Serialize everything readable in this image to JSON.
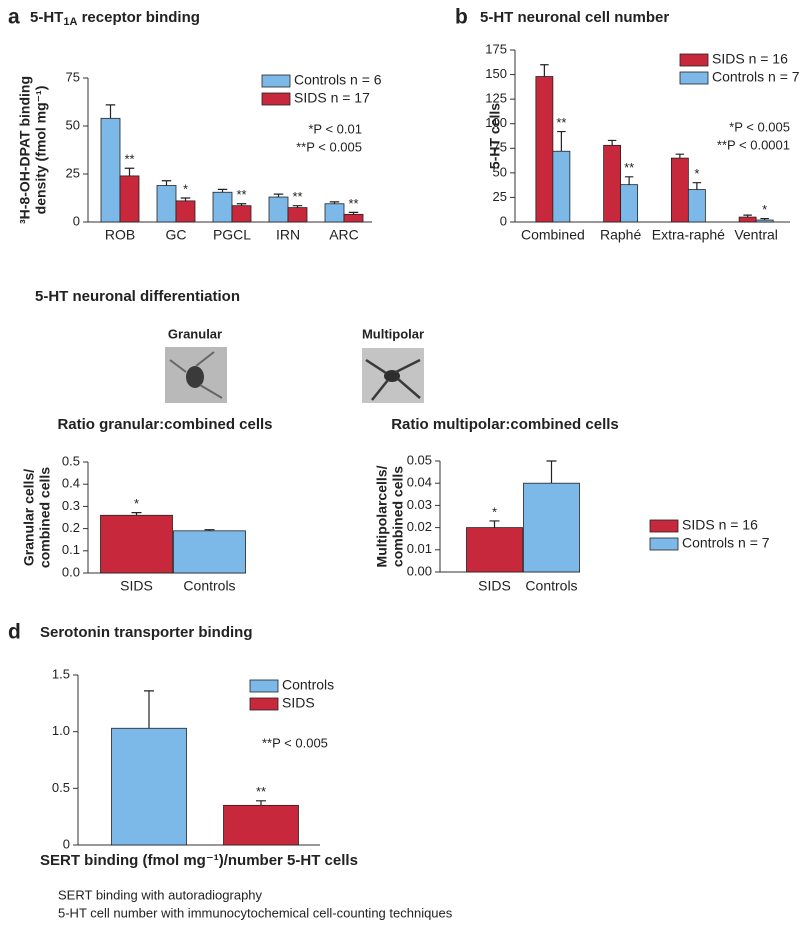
{
  "section_c": {
    "title": "5-HT neuronal differentiation",
    "images": [
      "Granular",
      "Multipolar"
    ]
  },
  "chart_data": [
    {
      "type": "bar",
      "panel": "a",
      "title_parts": [
        "5-HT",
        "1A",
        " receptor binding"
      ],
      "ylabel": [
        "³H-8-OH-DPAT binding",
        "density (fmol mg⁻¹)"
      ],
      "categories": [
        "ROB",
        "GC",
        "PGCL",
        "IRN",
        "ARC"
      ],
      "series": [
        {
          "name": "Controls n = 6",
          "color": "#7cb9e8",
          "values": [
            54,
            19,
            15.5,
            13,
            9.5
          ],
          "errors": [
            7,
            2.5,
            1.5,
            1.5,
            1
          ],
          "significance": [
            null,
            null,
            null,
            null,
            null
          ]
        },
        {
          "name": "SIDS n = 17",
          "color": "#c8283c",
          "values": [
            24,
            11,
            8.5,
            7.5,
            4
          ],
          "errors": [
            4,
            1.5,
            1,
            1,
            1
          ],
          "significance": [
            "**",
            "*",
            "**",
            "**",
            "**"
          ]
        }
      ],
      "ylim": [
        0,
        75
      ],
      "yticks": [
        0,
        25,
        50,
        75
      ],
      "annotations": [
        "*P < 0.01",
        "**P < 0.005"
      ]
    },
    {
      "type": "bar",
      "panel": "b",
      "title": "5-HT neuronal cell number",
      "ylabel": [
        "5-HT cells"
      ],
      "categories": [
        "Combined",
        "Raphé",
        "Extra-raphé",
        "Ventral"
      ],
      "series": [
        {
          "name": "SIDS n = 16",
          "color": "#c8283c",
          "values": [
            148,
            78,
            65,
            5
          ],
          "errors": [
            12,
            5,
            4,
            2
          ],
          "significance": [
            null,
            null,
            null,
            null
          ]
        },
        {
          "name": "Controls n = 7",
          "color": "#7cb9e8",
          "values": [
            72,
            38,
            33,
            2
          ],
          "errors": [
            20,
            8,
            7,
            1.5
          ],
          "significance": [
            "**",
            "**",
            "*",
            "*"
          ]
        }
      ],
      "ylim": [
        0,
        175
      ],
      "yticks": [
        0,
        25,
        50,
        75,
        100,
        125,
        150,
        175
      ],
      "annotations": [
        "*P < 0.005",
        "**P < 0.0001"
      ]
    },
    {
      "type": "bar",
      "title": "Ratio granular:combined cells",
      "ylabel": [
        "Granular cells/",
        "combined cells"
      ],
      "categories": [
        "SIDS",
        "Controls"
      ],
      "values": [
        0.26,
        0.19
      ],
      "errors": [
        0.012,
        0.005
      ],
      "significance": [
        "*",
        null
      ],
      "colors": [
        "#c8283c",
        "#7cb9e8"
      ],
      "ylim": [
        0,
        0.5
      ],
      "yticks": [
        {
          "value": 0,
          "label": "0.0"
        },
        0.1,
        0.2,
        0.3,
        0.4,
        0.5
      ]
    },
    {
      "type": "bar",
      "title": "Ratio multipolar:combined cells",
      "ylabel": [
        "Multipolarcells/",
        "combined cells"
      ],
      "categories": [
        "SIDS",
        "Controls"
      ],
      "values": [
        0.02,
        0.04
      ],
      "errors": [
        0.003,
        0.01
      ],
      "significance": [
        "*",
        null
      ],
      "colors": [
        "#c8283c",
        "#7cb9e8"
      ],
      "ylim": [
        0,
        0.05
      ],
      "yticks": [
        {
          "value": 0,
          "label": "0.00"
        },
        0.01,
        0.02,
        0.03,
        0.04,
        0.05
      ],
      "legend": [
        {
          "name": "SIDS n = 16",
          "color": "#c8283c"
        },
        {
          "name": "Controls n = 7",
          "color": "#7cb9e8"
        }
      ]
    },
    {
      "type": "bar",
      "panel": "d",
      "title": "Serotonin transporter binding",
      "xlabel": "SERT binding (fmol mg⁻¹)/number 5-HT cells",
      "categories": [
        null
      ],
      "series": [
        {
          "name": "Controls",
          "color": "#7cb9e8",
          "values": [
            1.03
          ],
          "errors": [
            0.33
          ],
          "significance": [
            null
          ]
        },
        {
          "name": "SIDS",
          "color": "#c8283c",
          "values": [
            0.35
          ],
          "errors": [
            0.04
          ],
          "significance": [
            "**"
          ]
        }
      ],
      "ylim": [
        0,
        1.5
      ],
      "yticks": [
        0,
        0.5,
        {
          "value": 1,
          "label": "1.0"
        },
        1.5
      ],
      "annotations": [
        "**P < 0.005"
      ],
      "notes": [
        "SERT binding with autoradiography",
        "5-HT cell number with immunocytochemical cell-counting techniques"
      ]
    }
  ]
}
